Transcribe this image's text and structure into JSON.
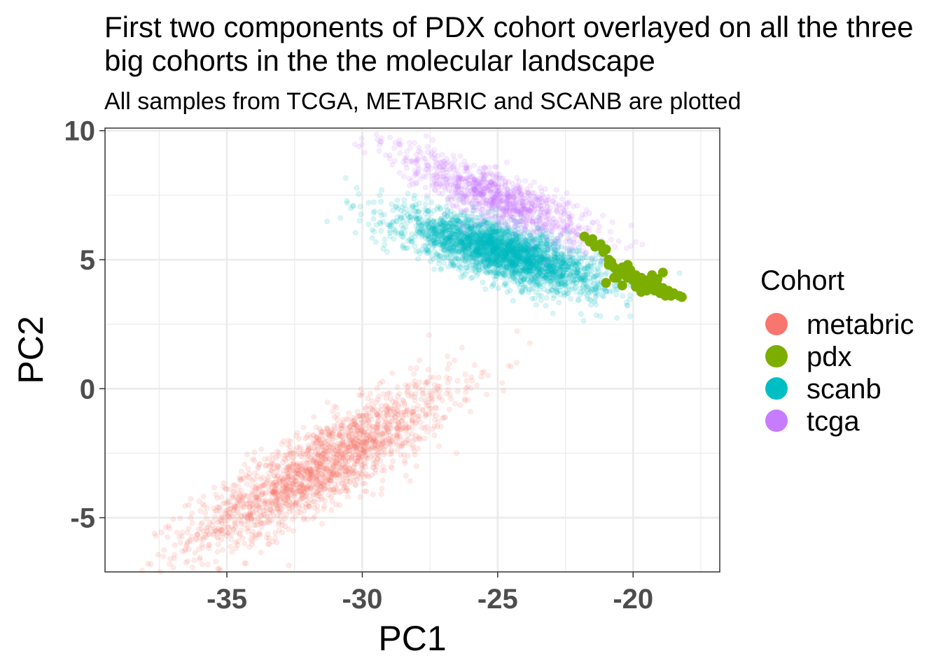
{
  "chart_data": {
    "type": "scatter",
    "title_lines": [
      "First two components of PDX cohort overlayed on all the three",
      "big cohorts in the the molecular landscape"
    ],
    "subtitle": "All samples from TCGA, METABRIC and SCANB are plotted",
    "xlabel": "PC1",
    "ylabel": "PC2",
    "xlim": [
      -39.5,
      -16.8
    ],
    "ylim": [
      -7.1,
      10.1
    ],
    "x_ticks": [
      -35,
      -30,
      -25,
      -20
    ],
    "x_tick_labels": [
      "-35",
      "-30",
      "-25",
      "-20"
    ],
    "y_ticks": [
      -5,
      0,
      5,
      10
    ],
    "y_tick_labels": [
      "-5",
      "0",
      "5",
      "10"
    ],
    "grid": true,
    "legend": {
      "title": "Cohort",
      "position": "right"
    },
    "series": [
      {
        "name": "metabric",
        "color": "#F8766D",
        "opacity": 0.15,
        "cloud": {
          "mean": [
            -31.5,
            -3.0
          ],
          "sd": [
            2.4,
            1.6
          ],
          "correlation": 0.86,
          "n": 1900
        }
      },
      {
        "name": "scanb",
        "color": "#00BFC4",
        "opacity": 0.15,
        "cloud": {
          "mean": [
            -24.8,
            5.3
          ],
          "sd": [
            1.8,
            0.75
          ],
          "correlation": -0.72,
          "n": 3000
        }
      },
      {
        "name": "tcga",
        "color": "#C77CFF",
        "opacity": 0.15,
        "cloud": {
          "mean": [
            -25.0,
            7.4
          ],
          "sd": [
            1.8,
            0.9
          ],
          "correlation": -0.82,
          "n": 1000
        }
      },
      {
        "name": "pdx",
        "color": "#7CAE00",
        "opacity": 1.0,
        "points": [
          [
            -21.8,
            5.9
          ],
          [
            -21.6,
            5.7
          ],
          [
            -21.5,
            5.8
          ],
          [
            -21.4,
            5.5
          ],
          [
            -21.2,
            5.6
          ],
          [
            -21.0,
            5.4
          ],
          [
            -21.1,
            5.3
          ],
          [
            -20.9,
            5.0
          ],
          [
            -20.8,
            4.9
          ],
          [
            -20.7,
            4.7
          ],
          [
            -20.6,
            4.6
          ],
          [
            -20.5,
            4.5
          ],
          [
            -20.4,
            4.7
          ],
          [
            -20.3,
            4.4
          ],
          [
            -20.2,
            4.3
          ],
          [
            -20.1,
            4.6
          ],
          [
            -20.0,
            4.2
          ],
          [
            -19.9,
            4.4
          ],
          [
            -19.8,
            4.1
          ],
          [
            -19.7,
            4.3
          ],
          [
            -19.6,
            4.0
          ],
          [
            -19.5,
            4.2
          ],
          [
            -19.4,
            3.9
          ],
          [
            -19.3,
            4.1
          ],
          [
            -19.2,
            3.8
          ],
          [
            -19.1,
            4.0
          ],
          [
            -19.0,
            3.7
          ],
          [
            -18.9,
            3.9
          ],
          [
            -18.8,
            3.6
          ],
          [
            -18.7,
            3.8
          ],
          [
            -18.6,
            3.6
          ],
          [
            -18.5,
            3.7
          ],
          [
            -18.3,
            3.6
          ],
          [
            -18.2,
            3.55
          ],
          [
            -20.6,
            4.3
          ],
          [
            -20.4,
            4.0
          ],
          [
            -19.9,
            3.95
          ],
          [
            -19.5,
            3.8
          ],
          [
            -19.3,
            4.4
          ],
          [
            -19.1,
            4.25
          ],
          [
            -18.9,
            4.5
          ],
          [
            -21.0,
            4.1
          ],
          [
            -20.2,
            4.8
          ],
          [
            -19.7,
            3.75
          ],
          [
            -19.0,
            3.85
          ],
          [
            -20.9,
            4.8
          ],
          [
            -20.7,
            4.3
          ]
        ]
      }
    ]
  }
}
